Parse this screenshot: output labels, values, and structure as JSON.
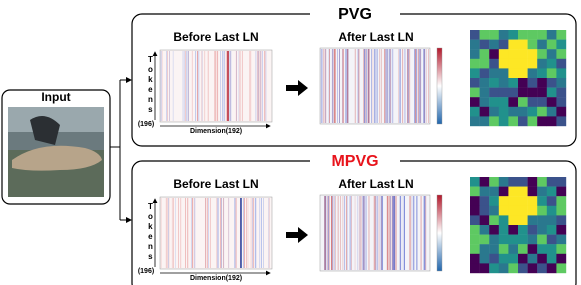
{
  "input": {
    "label": "Input"
  },
  "panels": [
    {
      "title": "PVG",
      "before_label": "Before Last LN",
      "after_label": "After Last LN",
      "y_axis_label": "Tokens",
      "y_axis_count": "(196)",
      "x_axis_label": "Dimension(192)"
    },
    {
      "title": "MPVG",
      "before_label": "Before Last LN",
      "after_label": "After Last LN",
      "y_axis_label": "Tokens",
      "y_axis_count": "(196)",
      "x_axis_label": "Dimension(192)"
    }
  ]
}
